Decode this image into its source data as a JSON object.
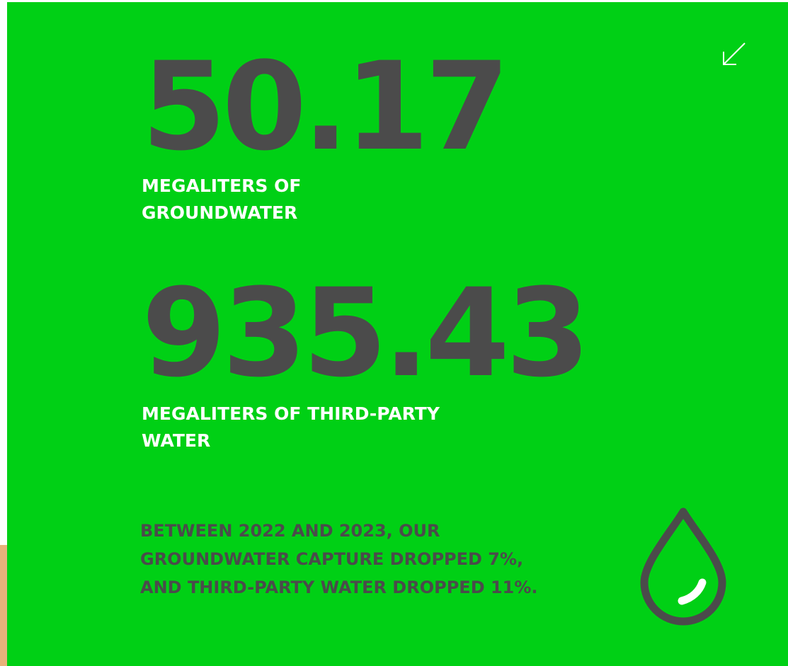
{
  "stats": [
    {
      "value": "50.17",
      "label": "MEGALITERS OF GROUNDWATER"
    },
    {
      "value": "935.43",
      "label": "MEGALITERS OF THIRD-PARTY WATER"
    }
  ],
  "note": "BETWEEN 2022 AND 2023, OUR GROUNDWATER CAPTURE DROPPED 7%, AND THIRD-PARTY WATER DROPPED 11%."
}
